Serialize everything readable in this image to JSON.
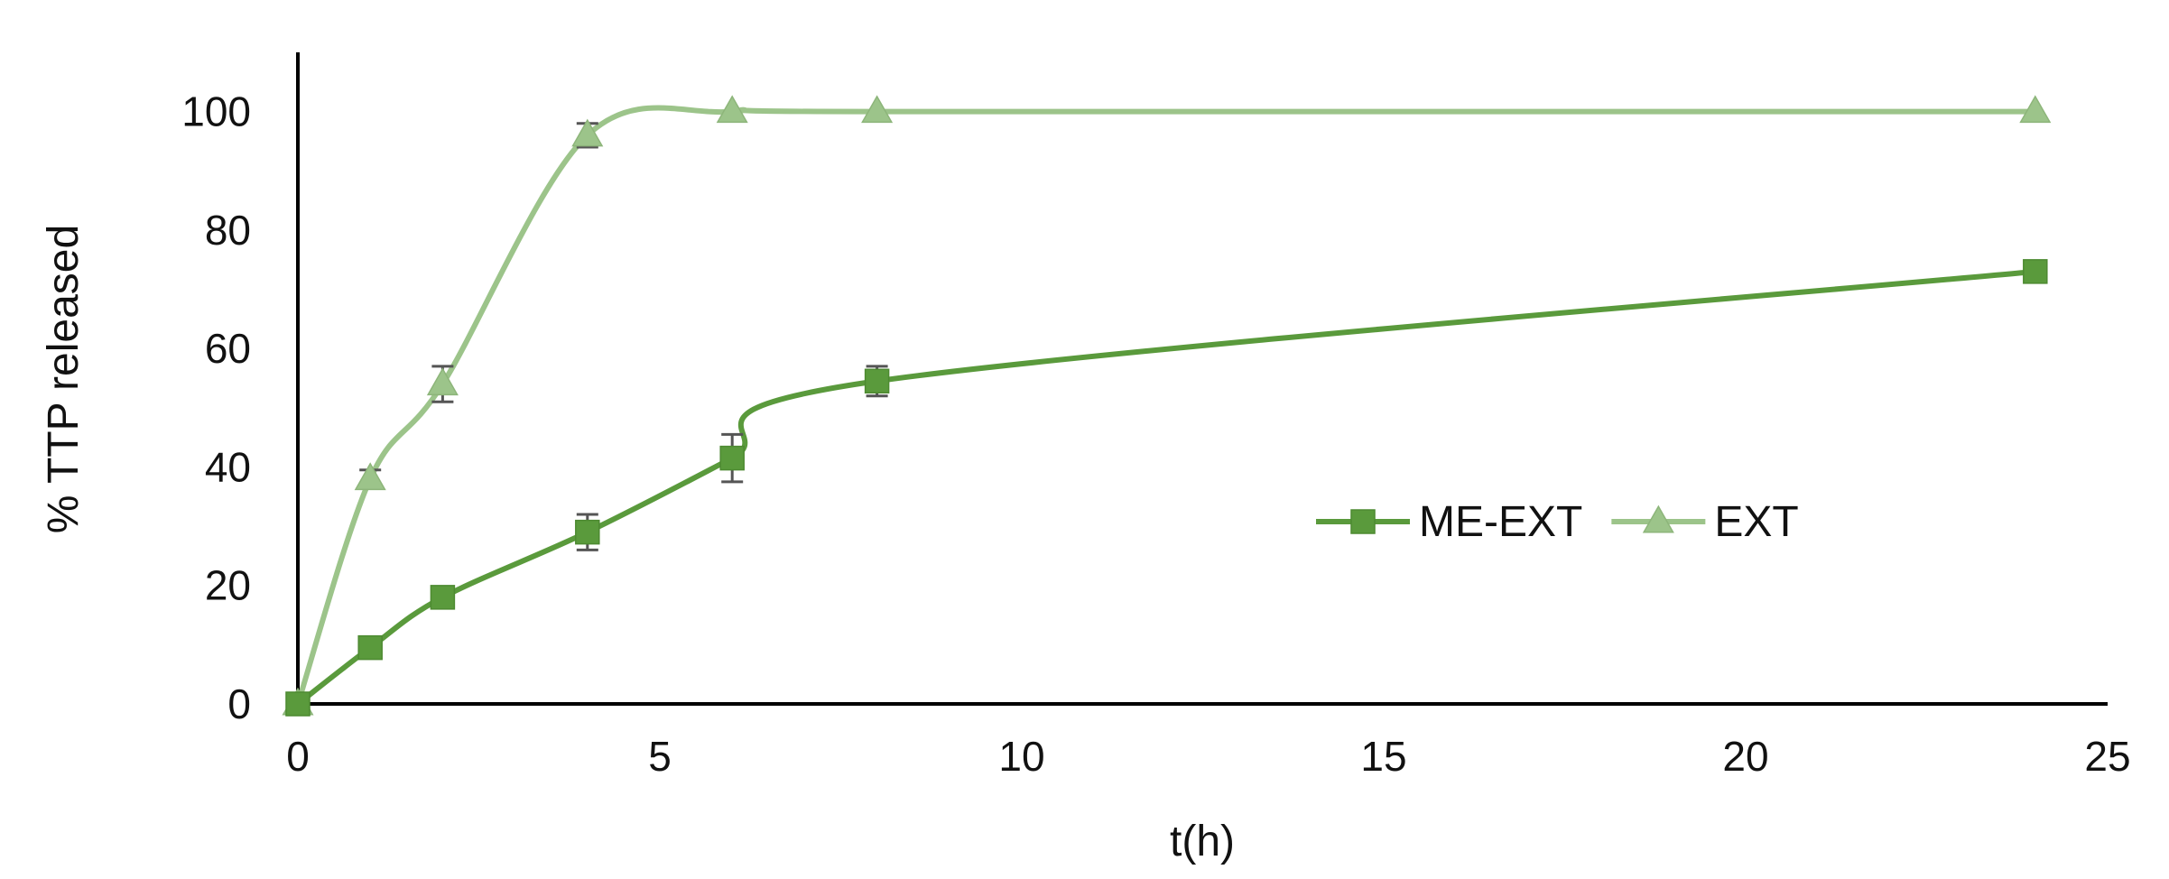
{
  "chart_data": {
    "type": "line",
    "title": "",
    "xlabel": "t(h)",
    "ylabel": "% TTP released",
    "xlim": [
      0,
      25
    ],
    "ylim": [
      0,
      110
    ],
    "xticks": [
      0,
      5,
      10,
      15,
      20,
      25
    ],
    "yticks": [
      0,
      20,
      40,
      60,
      80,
      100
    ],
    "grid": false,
    "legend_position": "center-right",
    "series": [
      {
        "name": "ME-EXT",
        "marker": "square",
        "color": "#5a9a3c",
        "x": [
          0,
          1,
          2,
          4,
          6,
          8,
          24
        ],
        "y": [
          0,
          9.5,
          18,
          29,
          41.5,
          54.5,
          73
        ],
        "error": [
          0,
          1,
          1.5,
          3,
          4,
          2.5,
          0
        ]
      },
      {
        "name": "EXT",
        "marker": "triangle",
        "color": "#9cc48a",
        "x": [
          0,
          1,
          2,
          4,
          6,
          8,
          24
        ],
        "y": [
          0,
          38,
          54,
          96,
          100,
          100,
          100
        ],
        "error": [
          0,
          1.5,
          3,
          2,
          0,
          0,
          0
        ]
      }
    ]
  }
}
